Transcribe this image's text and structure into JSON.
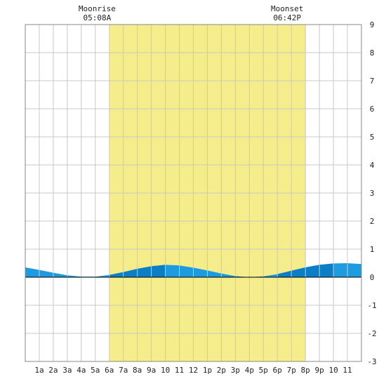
{
  "annotations": {
    "moonrise": {
      "label": "Moonrise",
      "time": "05:08A",
      "hour": 5.13
    },
    "moonset": {
      "label": "Moonset",
      "time": "06:42P",
      "hour": 18.7
    }
  },
  "chart_data": {
    "type": "area",
    "title": "",
    "xlabel": "",
    "ylabel": "",
    "grid": true,
    "legend": "none",
    "xlim": [
      0,
      24
    ],
    "ylim": [
      -3,
      9
    ],
    "x_tick_labels": [
      "1a",
      "2a",
      "3a",
      "4a",
      "5a",
      "6a",
      "7a",
      "8a",
      "9a",
      "10",
      "11",
      "12",
      "1p",
      "2p",
      "3p",
      "4p",
      "5p",
      "6p",
      "7p",
      "8p",
      "9p",
      "10",
      "11"
    ],
    "y_tick_labels": [
      "9",
      "8",
      "7",
      "6",
      "5",
      "4",
      "3",
      "2",
      "1",
      "0",
      "-1",
      "-2",
      "-3"
    ],
    "daylight": {
      "start_hour": 6,
      "end_hour": 20
    },
    "series": [
      {
        "x": [
          0,
          1,
          2,
          3,
          4,
          5,
          6,
          7,
          8,
          9,
          10,
          11,
          12,
          13,
          14,
          15,
          16,
          17,
          18,
          19,
          20,
          21,
          22,
          23,
          24
        ],
        "values": [
          0.35,
          0.26,
          0.16,
          0.07,
          0.02,
          0.02,
          0.08,
          0.18,
          0.3,
          0.39,
          0.44,
          0.42,
          0.34,
          0.24,
          0.13,
          0.04,
          0.0,
          0.03,
          0.11,
          0.23,
          0.35,
          0.44,
          0.49,
          0.5,
          0.47
        ]
      }
    ],
    "colors": {
      "daylight": "#f5ec8c",
      "tide_light": "#1d9be0",
      "tide_dark": "#0c7ec6",
      "grid": "#c8c8c8",
      "zero_line": "#000000"
    },
    "dark_shading": [
      [
        6,
        10
      ],
      [
        18,
        22
      ]
    ]
  }
}
